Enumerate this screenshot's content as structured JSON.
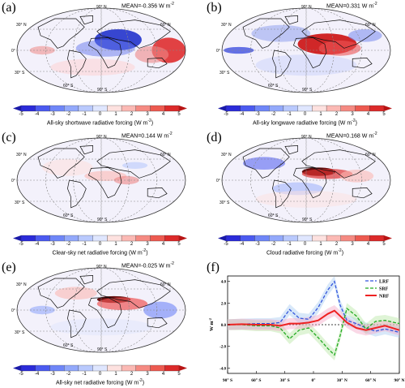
{
  "colorbar": {
    "ticks": [
      "-5",
      "-4",
      "-3",
      "-2",
      "-1",
      "0",
      "1",
      "2",
      "3",
      "4",
      "5"
    ],
    "colors": [
      "#2b2bd9",
      "#4b5af0",
      "#6f86f8",
      "#93a9fb",
      "#b9c9fd",
      "#dfe6fe",
      "#fde1df",
      "#fbb9b4",
      "#f58a82",
      "#ed5a50",
      "#dc2a2a"
    ]
  },
  "lat_labels": [
    "90° N",
    "30° N",
    "0°",
    "30° S",
    "60° S",
    "90° S",
    "60° N"
  ],
  "panels": [
    {
      "label": "(a)",
      "mean": "MEAN=-0.356 W m",
      "mean_sup": "-2",
      "cbar_title": "All-sky shortwave radiative forcing (W m",
      "cbar_sup": "-2",
      "cbar_end": ")"
    },
    {
      "label": "(b)",
      "mean": "MEAN=0.331 W m",
      "mean_sup": "-2",
      "cbar_title": "All-sky longwave radiative forcing (W m",
      "cbar_sup": "-2",
      "cbar_end": ")"
    },
    {
      "label": "(c)",
      "mean": "MEAN=0.144 W m",
      "mean_sup": "-2",
      "cbar_title": "Clear-sky net radiative forcing (W m",
      "cbar_sup": "-2",
      "cbar_end": ")"
    },
    {
      "label": "(d)",
      "mean": "MEAN=0.168 W m",
      "mean_sup": "-2",
      "cbar_title": "Cloud radiative forcing (W m",
      "cbar_sup": "-2",
      "cbar_end": ")"
    },
    {
      "label": "(e)",
      "mean": "MEAN=-0.025 W m",
      "mean_sup": "-2",
      "cbar_title": "All-sky net radiative forcing (W m",
      "cbar_sup": "-2",
      "cbar_end": ")"
    }
  ],
  "chart_data": {
    "type": "line",
    "label": "(f)",
    "ylabel": "W m",
    "ylabel_sup": "-2",
    "x_ticks": [
      "90° S",
      "60° S",
      "30° S",
      "0°",
      "30° N",
      "60° N",
      "90° N"
    ],
    "y_ticks": [
      "4.0",
      "2.0",
      "0.0",
      "-2.0",
      "-4.0"
    ],
    "ylim": [
      -4.5,
      4.5
    ],
    "xlim": [
      -90,
      90
    ],
    "x": [
      -90,
      -75,
      -60,
      -45,
      -35,
      -25,
      -15,
      -5,
      5,
      15,
      22,
      28,
      35,
      45,
      55,
      65,
      75,
      90
    ],
    "series": [
      {
        "name": "LRF",
        "color": "#3355dd",
        "style": "dashed",
        "values": [
          0.0,
          0.05,
          0.1,
          0.1,
          0.2,
          1.4,
          0.6,
          0.5,
          1.6,
          3.2,
          4.0,
          1.8,
          0.4,
          0.1,
          -0.3,
          -0.6,
          -0.4,
          -0.7
        ]
      },
      {
        "name": "SRF",
        "color": "#22aa22",
        "style": "dashed",
        "values": [
          0.0,
          0.0,
          -0.1,
          -0.1,
          -0.3,
          -1.3,
          -0.5,
          -0.3,
          -1.2,
          -2.2,
          -2.8,
          -1.0,
          1.5,
          0.8,
          -0.4,
          0.3,
          0.4,
          0.1
        ]
      },
      {
        "name": "NRF",
        "color": "#ee2222",
        "style": "solid",
        "values": [
          0.0,
          0.05,
          0.0,
          0.0,
          -0.1,
          0.1,
          0.1,
          0.2,
          0.4,
          1.0,
          1.3,
          0.8,
          0.2,
          -0.3,
          -0.5,
          -0.3,
          -0.1,
          -0.5
        ]
      }
    ]
  }
}
